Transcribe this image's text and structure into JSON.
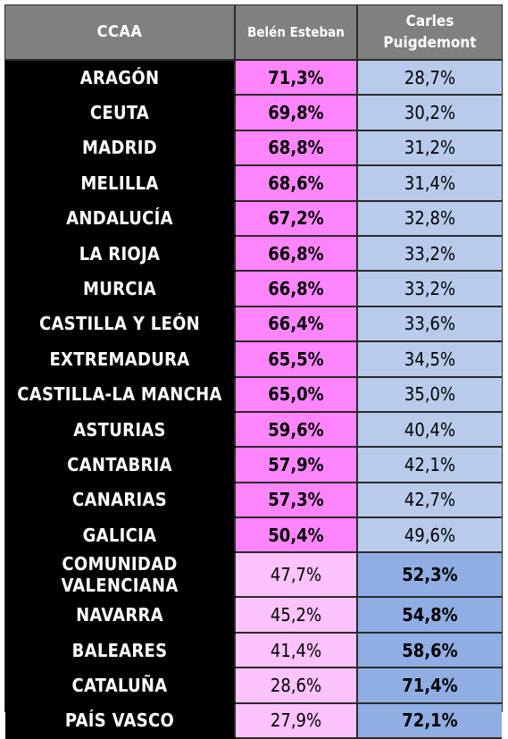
{
  "chart_data": {
    "type": "table",
    "columns": [
      "CCAA",
      "Belén Esteban",
      "Carles Puigdemont"
    ],
    "rows": [
      {
        "region": "ARAGÓN",
        "belen": "71,3%",
        "carles": "28,7%"
      },
      {
        "region": "CEUTA",
        "belen": "69,8%",
        "carles": "30,2%"
      },
      {
        "region": "MADRID",
        "belen": "68,8%",
        "carles": "31,2%"
      },
      {
        "region": "MELILLA",
        "belen": "68,6%",
        "carles": "31,4%"
      },
      {
        "region": "ANDALUCÍA",
        "belen": "67,2%",
        "carles": "32,8%"
      },
      {
        "region": "LA RIOJA",
        "belen": "66,8%",
        "carles": "33,2%"
      },
      {
        "region": "MURCIA",
        "belen": "66,8%",
        "carles": "33,2%"
      },
      {
        "region": "CASTILLA Y LEÓN",
        "belen": "66,4%",
        "carles": "33,6%"
      },
      {
        "region": "EXTREMADURA",
        "belen": "65,5%",
        "carles": "34,5%"
      },
      {
        "region": "CASTILLA-LA MANCHA",
        "belen": "65,0%",
        "carles": "35,0%"
      },
      {
        "region": "ASTURIAS",
        "belen": "59,6%",
        "carles": "40,4%"
      },
      {
        "region": "CANTABRIA",
        "belen": "57,9%",
        "carles": "42,1%"
      },
      {
        "region": "CANARIAS",
        "belen": "57,3%",
        "carles": "42,7%"
      },
      {
        "region": "GALICIA",
        "belen": "50,4%",
        "carles": "49,6%"
      },
      {
        "region": "COMUNIDAD VALENCIANA",
        "belen": "47,7%",
        "carles": "52,3%"
      },
      {
        "region": "NAVARRA",
        "belen": "45,2%",
        "carles": "54,8%"
      },
      {
        "region": "BALEARES",
        "belen": "41,4%",
        "carles": "58,6%"
      },
      {
        "region": "CATALUÑA",
        "belen": "28,6%",
        "carles": "71,4%"
      },
      {
        "region": "PAÍS VASCO",
        "belen": "27,9%",
        "carles": "72,1%"
      }
    ],
    "colors": {
      "header_bg": "#808080",
      "region_bg": "#000000",
      "belen_win": "#ff85ff",
      "belen_lose": "#fdc3fd",
      "carles_win": "#90aee3",
      "carles_lose": "#b9cbeb"
    }
  }
}
